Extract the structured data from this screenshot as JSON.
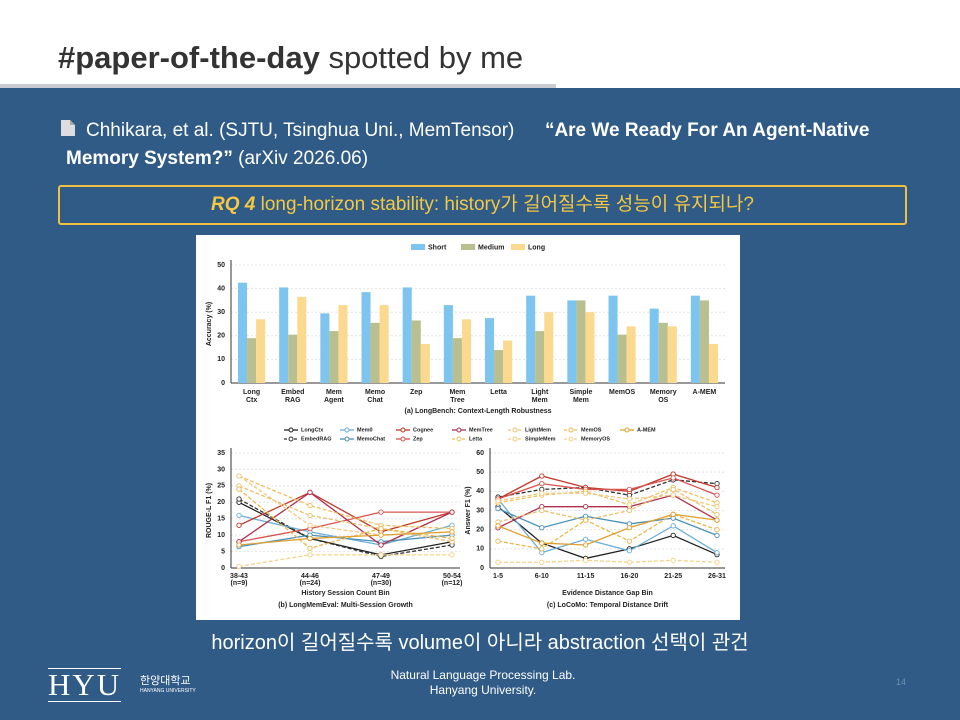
{
  "header": {
    "title_bold": "#paper-of-the-day",
    "title_rest": "spotted by me"
  },
  "citation": {
    "authors": "Chhikara, et al. (SJTU, Tsinghua Uni., MemTensor)",
    "title": "“Are We Ready For An Agent-Native Memory System?”",
    "venue": "(arXiv 2026.06)"
  },
  "rq": {
    "label": "RQ 4",
    "text": "long-horizon stability: history가 길어질수록 성능이 유지되나?"
  },
  "chart_data": [
    {
      "type": "bar",
      "title": "(a) LongBench: Context-Length Robustness",
      "ylabel": "Accuracy (%)",
      "categories": [
        "Long Ctx",
        "Embed RAG",
        "Mem Agent",
        "Memo Chat",
        "Zep",
        "Mem Tree",
        "Letta",
        "Light Mem",
        "Simple Mem",
        "MemOS",
        "Memory OS",
        "A-MEM"
      ],
      "series": [
        {
          "name": "Short",
          "color": "#7dc4ee",
          "values": [
            42.5,
            40.5,
            29.5,
            38.5,
            40.5,
            33,
            27.5,
            37,
            35,
            37,
            31.5,
            37
          ]
        },
        {
          "name": "Medium",
          "color": "#b9bf8f",
          "values": [
            19,
            20.5,
            22,
            25.5,
            26.5,
            19,
            14,
            22,
            35,
            20.5,
            25.5,
            35
          ]
        },
        {
          "name": "Long",
          "color": "#fbd98e",
          "values": [
            27,
            36.5,
            33,
            33,
            16.5,
            27,
            18,
            30,
            30,
            24,
            24,
            16.5
          ]
        }
      ],
      "ylim": [
        0,
        50
      ],
      "yticks": [
        0,
        10,
        20,
        30,
        40,
        50
      ],
      "grid": true,
      "legend": "top"
    },
    {
      "type": "line",
      "title": "(b) LongMemEval: Multi-Session Growth",
      "xlabel": "History Session Count Bin",
      "ylabel": "ROUGE-L F1 (%)",
      "categories": [
        "38-43",
        "44-46",
        "47-49",
        "50-54"
      ],
      "category_notes": [
        "(n=9)",
        "(n=24)",
        "(n=30)",
        "(n=12)"
      ],
      "series": [
        {
          "name": "LongCtx",
          "color": "#222222",
          "dashed": false,
          "values": [
            20,
            9,
            4,
            8
          ]
        },
        {
          "name": "EmbedRAG",
          "color": "#333333",
          "dashed": true,
          "values": [
            21,
            9,
            3.5,
            7
          ]
        },
        {
          "name": "Mem0",
          "color": "#6aaed6",
          "dashed": false,
          "values": [
            16,
            11,
            7,
            13
          ]
        },
        {
          "name": "MemoChat",
          "color": "#4a90b8",
          "dashed": false,
          "values": [
            6.5,
            10,
            8,
            10
          ]
        },
        {
          "name": "Cognee",
          "color": "#c0392b",
          "dashed": false,
          "values": [
            13,
            23,
            11,
            17
          ]
        },
        {
          "name": "Zep",
          "color": "#d9534f",
          "dashed": false,
          "values": [
            8,
            12,
            17,
            17
          ]
        },
        {
          "name": "MemTree",
          "color": "#b03050",
          "dashed": false,
          "values": [
            8,
            23,
            7,
            17
          ]
        },
        {
          "name": "Letta",
          "color": "#f0c060",
          "dashed": true,
          "values": [
            28,
            19,
            13,
            12
          ]
        },
        {
          "name": "LightMem",
          "color": "#e8c070",
          "dashed": true,
          "values": [
            25,
            16,
            12,
            8
          ]
        },
        {
          "name": "SimpleMem",
          "color": "#f2c97d",
          "dashed": true,
          "values": [
            28,
            13,
            10,
            11
          ]
        },
        {
          "name": "MemOS",
          "color": "#e8b84a",
          "dashed": true,
          "values": [
            24,
            6,
            12,
            9
          ]
        },
        {
          "name": "MemoryOS",
          "color": "#f5d28a",
          "dashed": true,
          "values": [
            0.5,
            4,
            4,
            4
          ]
        },
        {
          "name": "A-MEM",
          "color": "#e0a030",
          "dashed": false,
          "values": [
            7,
            9,
            10,
            11
          ]
        }
      ],
      "ylim": [
        0,
        35
      ],
      "yticks": [
        0,
        5,
        10,
        15,
        20,
        25,
        30,
        35
      ],
      "grid": true
    },
    {
      "type": "line",
      "title": "(c) LoCoMo: Temporal Distance Drift",
      "xlabel": "Evidence Distance Gap Bin",
      "ylabel": "Answer F1 (%)",
      "categories": [
        "1-5",
        "6-10",
        "11-15",
        "16-20",
        "21-25",
        "26-31"
      ],
      "series": [
        {
          "values": [
            32,
            13,
            5,
            10,
            17,
            7
          ]
        },
        {
          "values": [
            37,
            41,
            42,
            38,
            46,
            44
          ]
        },
        {
          "values": [
            36,
            8,
            15,
            9,
            22,
            8
          ]
        },
        {
          "values": [
            31,
            21,
            27,
            23,
            26,
            17
          ]
        },
        {
          "values": [
            36,
            48,
            42,
            40,
            49,
            42
          ]
        },
        {
          "values": [
            36,
            44,
            41,
            41,
            47,
            38
          ]
        },
        {
          "values": [
            21,
            32,
            32,
            32,
            38,
            25
          ]
        },
        {
          "values": [
            34,
            38,
            40,
            33,
            42,
            34
          ]
        },
        {
          "values": [
            24,
            30,
            25,
            30,
            41,
            28
          ]
        },
        {
          "values": [
            35,
            39,
            39,
            36,
            38,
            32
          ]
        },
        {
          "values": [
            14,
            10,
            25,
            14,
            28,
            20
          ]
        },
        {
          "values": [
            3,
            3,
            4,
            3,
            4,
            3
          ]
        },
        {
          "values": [
            22,
            13,
            12,
            21,
            28,
            25
          ]
        }
      ],
      "ylim": [
        0,
        60
      ],
      "yticks": [
        0,
        10,
        20,
        30,
        40,
        50,
        60
      ],
      "grid": true
    }
  ],
  "takeaway": "horizon이 길어질수록 volume이 아니라 abstraction 선택이 관건",
  "footer": {
    "logo": "HYU",
    "logo_kr": "한양대학교",
    "logo_en": "HANYANG UNIVERSITY",
    "lab": "Natural Language Processing Lab.",
    "univ": "Hanyang University.",
    "page": "14"
  }
}
